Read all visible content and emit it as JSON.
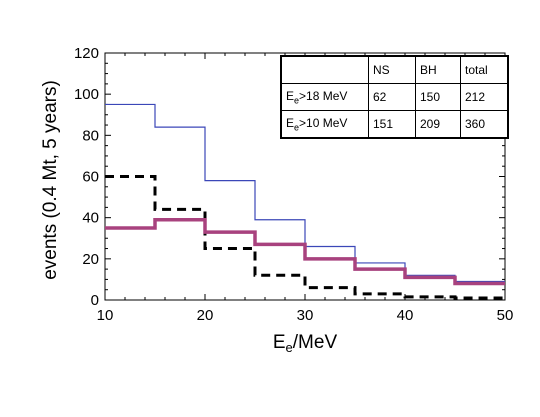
{
  "chart_data": {
    "type": "line",
    "step": true,
    "xlabel": "E",
    "xlabel_sub": "e",
    "xlabel_unit": "/MeV",
    "ylabel": "events (0.4 Mt, 5 years)",
    "xlim": [
      10,
      50
    ],
    "ylim": [
      0,
      120
    ],
    "x_ticks": [
      10,
      20,
      30,
      40,
      50
    ],
    "y_ticks": [
      0,
      20,
      40,
      60,
      80,
      100,
      120
    ],
    "bin_edges": [
      10,
      15,
      20,
      25,
      30,
      35,
      40,
      45,
      50
    ],
    "series": [
      {
        "style": "solid-thin",
        "color": "#3b47b8",
        "values": [
          95,
          84,
          58,
          39,
          26,
          18,
          12,
          9
        ]
      },
      {
        "style": "dashed",
        "color": "#000000",
        "values": [
          60,
          44,
          25,
          12,
          6,
          3,
          1.5,
          1
        ]
      },
      {
        "style": "solid-thick",
        "color": "#a8427e",
        "values": [
          35,
          39,
          33,
          27,
          20,
          15,
          11,
          8
        ]
      }
    ],
    "table": {
      "header": [
        "",
        "NS",
        "BH",
        "total"
      ],
      "rows": [
        {
          "label": "E",
          "sub": "e",
          "rest": ">18 MeV",
          "cells": [
            "62",
            "150",
            "212"
          ]
        },
        {
          "label": "E",
          "sub": "e",
          "rest": ">10 MeV",
          "cells": [
            "151",
            "209",
            "360"
          ]
        }
      ]
    }
  }
}
